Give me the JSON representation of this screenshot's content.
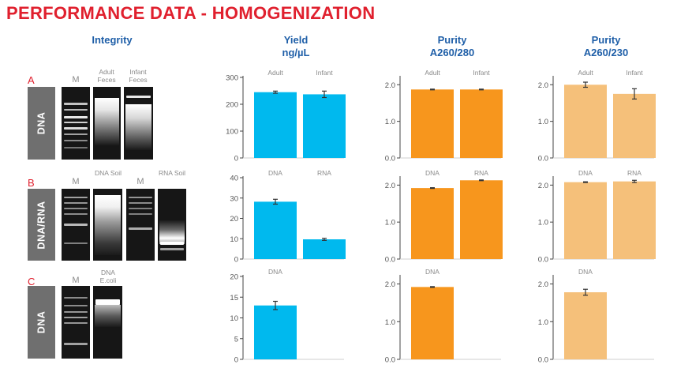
{
  "title": "PERFORMANCE DATA - HOMOGENIZATION",
  "columns": {
    "integrity": "Integrity",
    "yield": [
      "Yield",
      "ng/µL"
    ],
    "purity280": [
      "Purity",
      "A260/280"
    ],
    "purity230": [
      "Purity",
      "A260/230"
    ]
  },
  "rows": [
    {
      "letter": "A",
      "label": "DNA",
      "gel_labels": [
        "M",
        "Adult Feces",
        "Infant Feces"
      ]
    },
    {
      "letter": "B",
      "label": "DNA/RNA",
      "gel_labels": [
        "M",
        "DNA Soil",
        "M",
        "RNA Soil"
      ]
    },
    {
      "letter": "C",
      "label": "DNA",
      "gel_labels": [
        "M",
        "DNA E.coli"
      ]
    }
  ],
  "colors": {
    "yield": "#00b9ee",
    "purity280": "#f7961d",
    "purity230": "#f5c07a",
    "title": "#e0202e",
    "header": "#1f5fa8"
  },
  "chart_data": [
    {
      "id": "A-yield",
      "type": "bar",
      "categories": [
        "Adult",
        "Infant"
      ],
      "values": [
        245,
        237
      ],
      "errors": [
        4,
        12
      ],
      "ylim": [
        0,
        300
      ],
      "yticks": [
        0,
        100,
        200,
        300
      ],
      "color": "yield",
      "ylabel": "Yield ng/µL"
    },
    {
      "id": "A-p280",
      "type": "bar",
      "categories": [
        "Adult",
        "Infant"
      ],
      "values": [
        1.87,
        1.87
      ],
      "errors": [
        0.01,
        0.01
      ],
      "ylim": [
        0,
        2.2
      ],
      "yticks": [
        0.0,
        1.0,
        2.0
      ],
      "ytick_labels": [
        "0.0",
        "1.0",
        "2.0"
      ],
      "color": "purity280",
      "ylabel": "Purity A260/280"
    },
    {
      "id": "A-p230",
      "type": "bar",
      "categories": [
        "Adult",
        "Infant"
      ],
      "values": [
        2.0,
        1.75
      ],
      "errors": [
        0.07,
        0.14
      ],
      "ylim": [
        0,
        2.2
      ],
      "yticks": [
        0.0,
        1.0,
        2.0
      ],
      "ytick_labels": [
        "0.0",
        "1.0",
        "2.0"
      ],
      "color": "purity230",
      "ylabel": "Purity A260/230"
    },
    {
      "id": "B-yield",
      "type": "bar",
      "categories": [
        "DNA",
        "RNA"
      ],
      "values": [
        28.2,
        9.7
      ],
      "errors": [
        1.2,
        0.5
      ],
      "ylim": [
        0,
        40
      ],
      "yticks": [
        0,
        10,
        20,
        30,
        40
      ],
      "color": "yield",
      "ylabel": "Yield ng/µL"
    },
    {
      "id": "B-p280",
      "type": "bar",
      "categories": [
        "DNA",
        "RNA"
      ],
      "values": [
        1.92,
        2.13
      ],
      "errors": [
        0.01,
        0.01
      ],
      "ylim": [
        0,
        2.2
      ],
      "yticks": [
        0.0,
        1.0,
        2.0
      ],
      "ytick_labels": [
        "0.0",
        "1.0",
        "2.0"
      ],
      "color": "purity280",
      "ylabel": "Purity A260/280"
    },
    {
      "id": "B-p230",
      "type": "bar",
      "categories": [
        "DNA",
        "RNA"
      ],
      "values": [
        2.08,
        2.1
      ],
      "errors": [
        0.01,
        0.03
      ],
      "ylim": [
        0,
        2.2
      ],
      "yticks": [
        0.0,
        1.0,
        2.0
      ],
      "ytick_labels": [
        "0.0",
        "1.0",
        "2.0"
      ],
      "color": "purity230",
      "ylabel": "Purity A260/230"
    },
    {
      "id": "C-yield",
      "type": "bar",
      "categories": [
        "DNA"
      ],
      "values": [
        13.0
      ],
      "errors": [
        1.0
      ],
      "ylim": [
        0,
        20
      ],
      "yticks": [
        0,
        5,
        10,
        15,
        20
      ],
      "color": "yield",
      "ylabel": "Yield ng/µL"
    },
    {
      "id": "C-p280",
      "type": "bar",
      "categories": [
        "DNA"
      ],
      "values": [
        1.92
      ],
      "errors": [
        0.01
      ],
      "ylim": [
        0,
        2.2
      ],
      "yticks": [
        0.0,
        1.0,
        2.0
      ],
      "ytick_labels": [
        "0.0",
        "1.0",
        "2.0"
      ],
      "color": "purity280",
      "ylabel": "Purity A260/280"
    },
    {
      "id": "C-p230",
      "type": "bar",
      "categories": [
        "DNA"
      ],
      "values": [
        1.78
      ],
      "errors": [
        0.08
      ],
      "ylim": [
        0,
        2.2
      ],
      "yticks": [
        0.0,
        1.0,
        2.0
      ],
      "ytick_labels": [
        "0.0",
        "1.0",
        "2.0"
      ],
      "color": "purity230",
      "ylabel": "Purity A260/230"
    }
  ]
}
